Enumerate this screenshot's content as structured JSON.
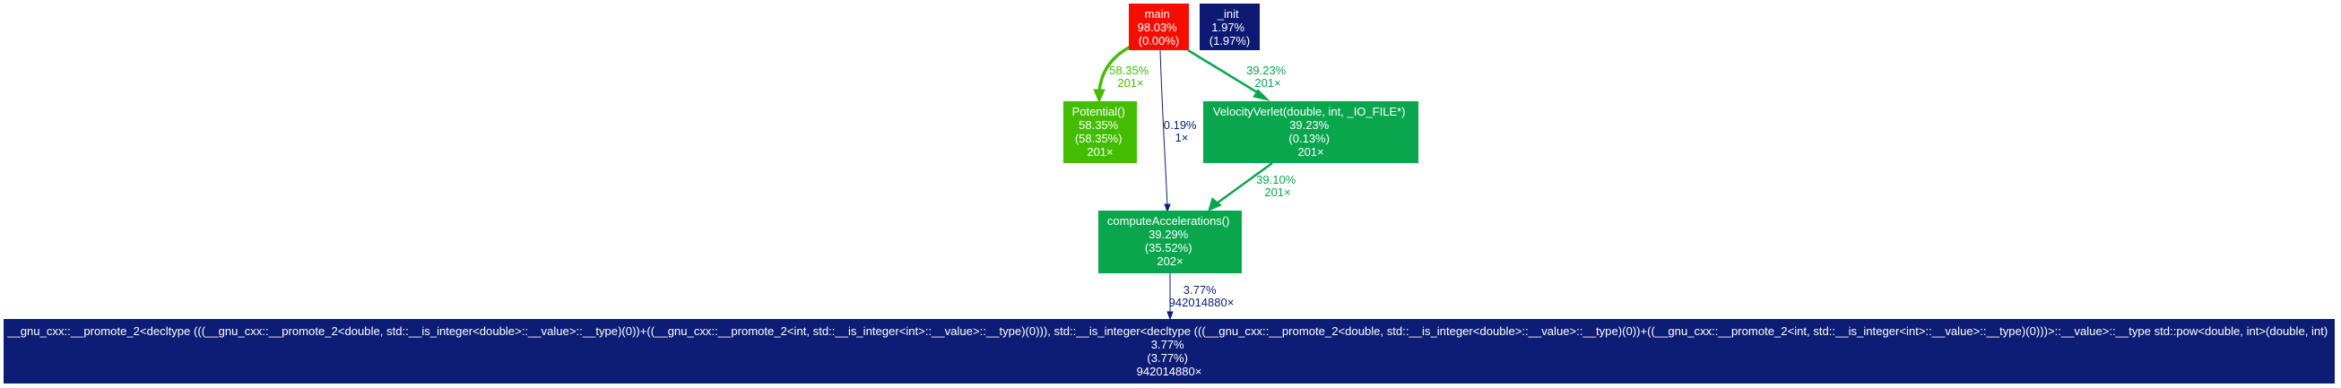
{
  "nodes": {
    "main": {
      "color": "#f70d00",
      "lines": [
        "main",
        "98.03%",
        "(0.00%)"
      ]
    },
    "init": {
      "color": "#0d1973",
      "lines": [
        "_init",
        "1.97%",
        "(1.97%)"
      ]
    },
    "potential": {
      "color": "#44bd00",
      "lines": [
        "Potential()",
        "58.35%",
        "(58.35%)",
        "201×"
      ]
    },
    "velocity_verlet": {
      "color": "#0aa64e",
      "lines": [
        "VelocityVerlet(double, int, _IO_FILE*)",
        "39.23%",
        "(0.13%)",
        "201×"
      ]
    },
    "compute_accelerations": {
      "color": "#0aa64d",
      "lines": [
        "computeAccelerations()",
        "39.29%",
        "(35.52%)",
        "202×"
      ]
    },
    "pow": {
      "color": "#0d1d75",
      "lines": [
        "__gnu_cxx::__promote_2<decltype (((__gnu_cxx::__promote_2<double, std::__is_integer<double>::__value>::__type)(0))+((__gnu_cxx::__promote_2<int, std::__is_integer<int>::__value>::__type)(0))), std::__is_integer<decltype (((__gnu_cxx::__promote_2<double, std::__is_integer<double>::__value>::__type)(0))+((__gnu_cxx::__promote_2<int, std::__is_integer<int>::__value>::__type)(0)))>::__value>::__type std::pow<double, int>(double, int)",
        "3.77%",
        "(3.77%)",
        "942014880×"
      ]
    }
  },
  "edges": {
    "main_potential": {
      "color": "#44bd00",
      "lines": [
        "58.35%",
        "201×"
      ]
    },
    "main_compute": {
      "color": "#0d2079",
      "lines": [
        "0.19%",
        "1×"
      ]
    },
    "main_verlet": {
      "color": "#0aa64e",
      "lines": [
        "39.23%",
        "201×"
      ]
    },
    "verlet_compute": {
      "color": "#0aa54d",
      "lines": [
        "39.10%",
        "201×"
      ]
    },
    "compute_pow": {
      "color": "#0d1d75",
      "lines": [
        "3.77%",
        "942014880×"
      ]
    }
  }
}
